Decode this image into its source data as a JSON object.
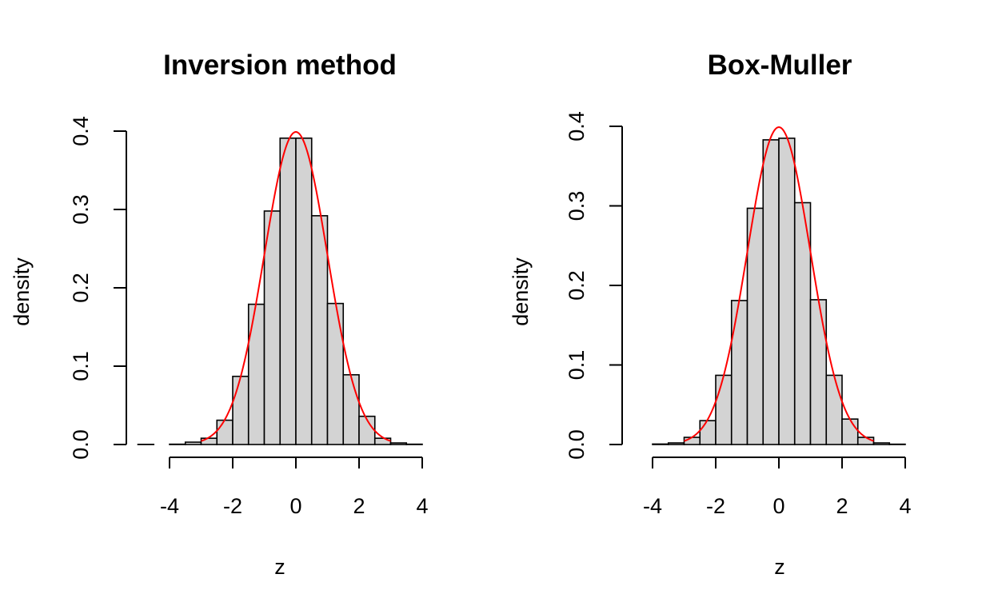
{
  "chart_data": [
    {
      "type": "bar",
      "subtype": "histogram",
      "title": "Inversion method",
      "xlabel": "z",
      "ylabel": "density",
      "bin_width": 0.5,
      "bins": [
        {
          "x0": -5.0,
          "x1": -4.5,
          "density": 0.0002
        },
        {
          "x0": -4.5,
          "x1": -4.0,
          "density": 0.0
        },
        {
          "x0": -4.0,
          "x1": -3.5,
          "density": 0.0004
        },
        {
          "x0": -3.5,
          "x1": -3.0,
          "density": 0.003
        },
        {
          "x0": -3.0,
          "x1": -2.5,
          "density": 0.008
        },
        {
          "x0": -2.5,
          "x1": -2.0,
          "density": 0.031
        },
        {
          "x0": -2.0,
          "x1": -1.5,
          "density": 0.087
        },
        {
          "x0": -1.5,
          "x1": -1.0,
          "density": 0.179
        },
        {
          "x0": -1.0,
          "x1": -0.5,
          "density": 0.298
        },
        {
          "x0": -0.5,
          "x1": 0.0,
          "density": 0.391
        },
        {
          "x0": 0.0,
          "x1": 0.5,
          "density": 0.391
        },
        {
          "x0": 0.5,
          "x1": 1.0,
          "density": 0.292
        },
        {
          "x0": 1.0,
          "x1": 1.5,
          "density": 0.18
        },
        {
          "x0": 1.5,
          "x1": 2.0,
          "density": 0.089
        },
        {
          "x0": 2.0,
          "x1": 2.5,
          "density": 0.036
        },
        {
          "x0": 2.5,
          "x1": 3.0,
          "density": 0.008
        },
        {
          "x0": 3.0,
          "x1": 3.5,
          "density": 0.002
        },
        {
          "x0": 3.5,
          "x1": 4.0,
          "density": 0.0004
        }
      ],
      "curve": {
        "name": "",
        "function": "standard normal density",
        "x_range": [
          -3,
          3
        ],
        "color": "#ff0000"
      },
      "xlim": [
        -5,
        4
      ],
      "ylim": [
        0,
        0.4
      ],
      "xticks": [
        -4,
        -2,
        0,
        2,
        4
      ],
      "xtick_labels": [
        "-4",
        "-2",
        "0",
        "2",
        "4"
      ],
      "yticks": [
        0,
        0.1,
        0.2,
        0.3,
        0.4
      ],
      "ytick_labels": [
        "0.0",
        "0.1",
        "0.2",
        "0.3",
        "0.4"
      ],
      "grid": false,
      "bar_fill": "#d3d3d3",
      "bar_stroke": "#000000"
    },
    {
      "type": "bar",
      "subtype": "histogram",
      "title": "Box-Muller",
      "xlabel": "z",
      "ylabel": "density",
      "bin_width": 0.5,
      "bins": [
        {
          "x0": -4.5,
          "x1": -4.0,
          "density": 0.0
        },
        {
          "x0": -4.0,
          "x1": -3.5,
          "density": 0.0006
        },
        {
          "x0": -3.5,
          "x1": -3.0,
          "density": 0.002
        },
        {
          "x0": -3.0,
          "x1": -2.5,
          "density": 0.009
        },
        {
          "x0": -2.5,
          "x1": -2.0,
          "density": 0.03
        },
        {
          "x0": -2.0,
          "x1": -1.5,
          "density": 0.087
        },
        {
          "x0": -1.5,
          "x1": -1.0,
          "density": 0.181
        },
        {
          "x0": -1.0,
          "x1": -0.5,
          "density": 0.297
        },
        {
          "x0": -0.5,
          "x1": 0.0,
          "density": 0.383
        },
        {
          "x0": 0.0,
          "x1": 0.5,
          "density": 0.385
        },
        {
          "x0": 0.5,
          "x1": 1.0,
          "density": 0.304
        },
        {
          "x0": 1.0,
          "x1": 1.5,
          "density": 0.182
        },
        {
          "x0": 1.5,
          "x1": 2.0,
          "density": 0.087
        },
        {
          "x0": 2.0,
          "x1": 2.5,
          "density": 0.032
        },
        {
          "x0": 2.5,
          "x1": 3.0,
          "density": 0.009
        },
        {
          "x0": 3.0,
          "x1": 3.5,
          "density": 0.002
        },
        {
          "x0": 3.5,
          "x1": 4.0,
          "density": 0.0004
        },
        {
          "x0": 4.0,
          "x1": 4.5,
          "density": 0.0
        }
      ],
      "curve": {
        "name": "",
        "function": "standard normal density",
        "x_range": [
          -3,
          3
        ],
        "color": "#ff0000"
      },
      "xlim": [
        -4.5,
        4.5
      ],
      "ylim": [
        0,
        0.4
      ],
      "xticks": [
        -4,
        -2,
        0,
        2,
        4
      ],
      "xtick_labels": [
        "-4",
        "-2",
        "0",
        "2",
        "4"
      ],
      "yticks": [
        0,
        0.1,
        0.2,
        0.3,
        0.4
      ],
      "ytick_labels": [
        "0.0",
        "0.1",
        "0.2",
        "0.3",
        "0.4"
      ],
      "grid": false,
      "bar_fill": "#d3d3d3",
      "bar_stroke": "#000000"
    }
  ]
}
